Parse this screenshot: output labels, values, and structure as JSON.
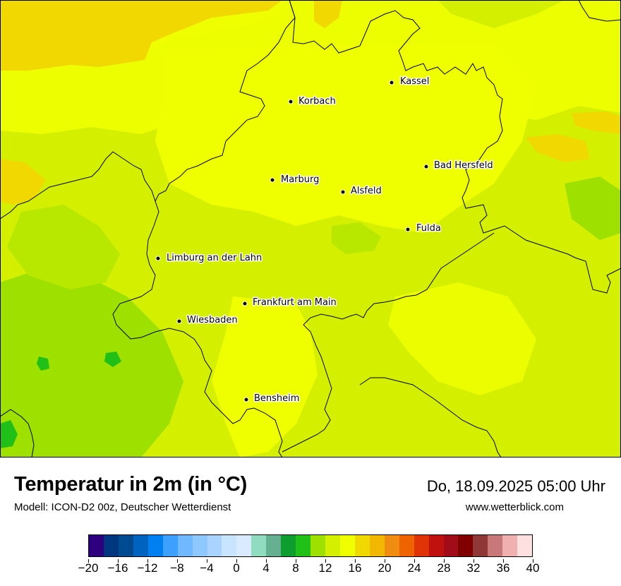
{
  "map": {
    "background_color": "#d4f000",
    "border_color": "#000000",
    "cities": [
      {
        "name": "Kassel"
      },
      {
        "name": "Korbach"
      },
      {
        "name": "Bad Hersfeld"
      },
      {
        "name": "Marburg"
      },
      {
        "name": "Alsfeld"
      },
      {
        "name": "Fulda"
      },
      {
        "name": "Limburg an der Lahn"
      },
      {
        "name": "Frankfurt am Main"
      },
      {
        "name": "Wiesbaden"
      },
      {
        "name": "Bensheim"
      }
    ]
  },
  "footer": {
    "title": "Temperatur in 2m (in °C)",
    "model": "Modell: ICON-D2 00z, Deutscher Wetterdienst",
    "datetime": "Do, 18.09.2025 05:00 Uhr",
    "website": "www.wetterblick.com"
  },
  "legend": {
    "colors": [
      "#2e0080",
      "#003580",
      "#004a8f",
      "#0063c0",
      "#0080f0",
      "#3da0ff",
      "#70b8ff",
      "#8ec8ff",
      "#a8d4ff",
      "#c8e4ff",
      "#daeaff",
      "#90dcc0",
      "#64b090",
      "#0e9e30",
      "#20c018",
      "#9ee000",
      "#d4f000",
      "#f0ff00",
      "#f0d800",
      "#f0b800",
      "#f08c10",
      "#f06400",
      "#e03408",
      "#c01010",
      "#a00c18",
      "#800000",
      "#903838",
      "#c87878",
      "#f0b0b0",
      "#ffe0e0"
    ],
    "ticks": [
      "−20",
      "−16",
      "−12",
      "−8",
      "−4",
      "0",
      "4",
      "8",
      "12",
      "16",
      "20",
      "24",
      "28",
      "32",
      "36",
      "40"
    ],
    "min": -20,
    "max": 40
  }
}
